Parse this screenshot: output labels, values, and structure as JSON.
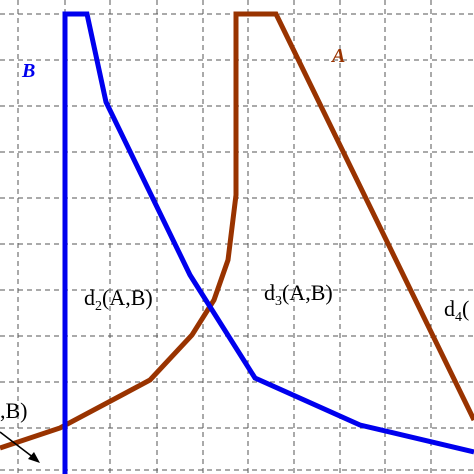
{
  "curves": {
    "A": {
      "label": "A",
      "color": "#993300"
    },
    "B": {
      "label": "B",
      "color": "#0000ee"
    }
  },
  "regions": {
    "d1_tail": ",B)",
    "d2": {
      "fn": "d",
      "sub": "2",
      "args": "(A,B)"
    },
    "d3": {
      "fn": "d",
      "sub": "3",
      "args": "(A,B)"
    },
    "d4": {
      "fn": "d",
      "sub": "4",
      "args": "("
    }
  },
  "colors": {
    "grid": "#555555",
    "text": "#000000",
    "background": "#ffffff"
  }
}
